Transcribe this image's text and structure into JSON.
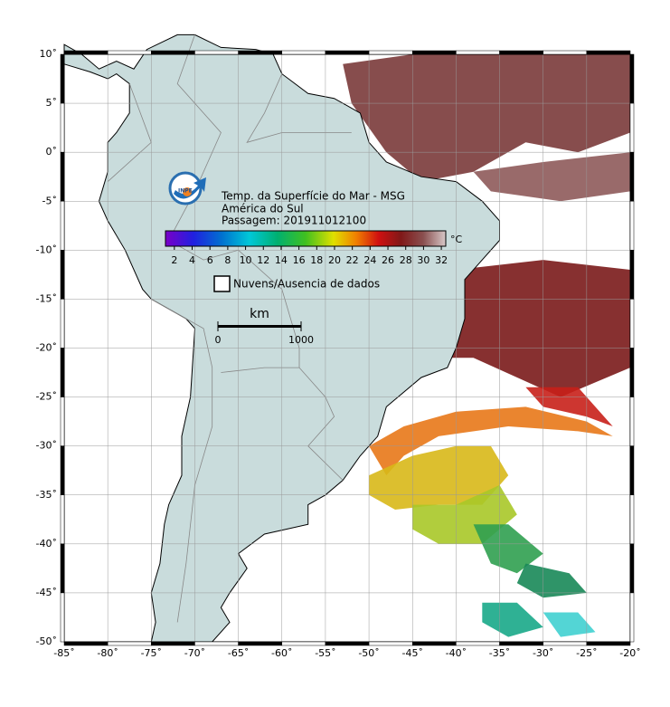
{
  "map": {
    "xlim": [
      -85,
      -20
    ],
    "ylim": [
      -50,
      10
    ],
    "xticks": [
      {
        "value": -85,
        "label": "-85˚"
      },
      {
        "value": -80,
        "label": "-80˚"
      },
      {
        "value": -75,
        "label": "-75˚"
      },
      {
        "value": -70,
        "label": "-70˚"
      },
      {
        "value": -65,
        "label": "-65˚"
      },
      {
        "value": -60,
        "label": "-60˚"
      },
      {
        "value": -55,
        "label": "-55˚"
      },
      {
        "value": -50,
        "label": "-50˚"
      },
      {
        "value": -45,
        "label": "-45˚"
      },
      {
        "value": -40,
        "label": "-40˚"
      },
      {
        "value": -35,
        "label": "-35˚"
      },
      {
        "value": -30,
        "label": "-30˚"
      },
      {
        "value": -25,
        "label": "-25˚"
      },
      {
        "value": -20,
        "label": "-20˚"
      }
    ],
    "yticks": [
      {
        "value": 10,
        "label": "10˚"
      },
      {
        "value": 5,
        "label": "5˚"
      },
      {
        "value": 0,
        "label": "0˚"
      },
      {
        "value": -5,
        "label": "-5˚"
      },
      {
        "value": -10,
        "label": "-10˚"
      },
      {
        "value": -15,
        "label": "-15˚"
      },
      {
        "value": -20,
        "label": "-20˚"
      },
      {
        "value": -25,
        "label": "-25˚"
      },
      {
        "value": -30,
        "label": "-30˚"
      },
      {
        "value": -35,
        "label": "-35˚"
      },
      {
        "value": -40,
        "label": "-40˚"
      },
      {
        "value": -45,
        "label": "-45˚"
      },
      {
        "value": -50,
        "label": "-50˚"
      }
    ]
  },
  "legend": {
    "logo_text": "INPE",
    "title_lines": [
      "Temp. da Superfície do Mar - MSG",
      "América do Sul",
      "Passagem: 201911012100"
    ],
    "colorbar": {
      "unit": "°C",
      "lim": [
        1,
        32.5
      ],
      "ticks": [
        2,
        4,
        6,
        8,
        10,
        12,
        14,
        16,
        18,
        20,
        22,
        24,
        26,
        28,
        30,
        32
      ]
    },
    "cloud_label": "Nuvens/Ausencia de dados",
    "scale": {
      "unit": "km",
      "ticks": [
        0,
        1000
      ]
    }
  }
}
